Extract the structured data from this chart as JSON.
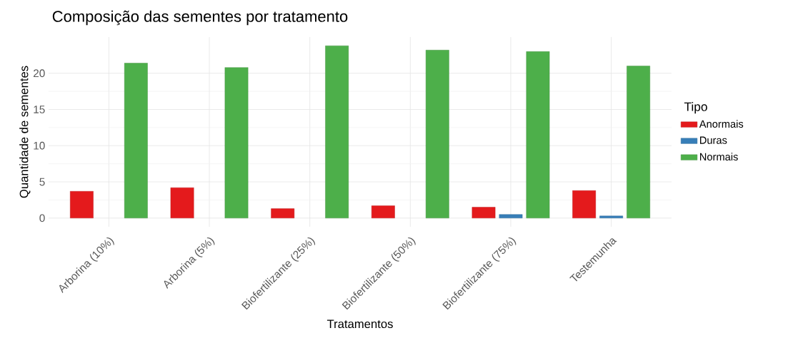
{
  "chart_data": {
    "type": "bar",
    "title": "Composição das sementes por tratamento",
    "xlabel": "Tratamentos",
    "ylabel": "Quantidade de sementes",
    "legend_title": "Tipo",
    "categories": [
      "Arborina (10%)",
      "Arborina (5%)",
      "Biofertilizante (25%)",
      "Biofertilizante (50%)",
      "Biofertilizante (75%)",
      "Testemunha"
    ],
    "series": [
      {
        "name": "Anormais",
        "color": "#e41a1c",
        "values": [
          3.7,
          4.2,
          1.3,
          1.7,
          1.5,
          3.8
        ]
      },
      {
        "name": "Duras",
        "color": "#377eb8",
        "values": [
          null,
          null,
          null,
          null,
          0.5,
          0.3
        ]
      },
      {
        "name": "Normais",
        "color": "#4daf4a",
        "values": [
          21.4,
          20.8,
          23.8,
          23.2,
          23.0,
          21.0
        ]
      }
    ],
    "ylim": [
      -1.2,
      25
    ],
    "yticks": [
      0,
      5,
      10,
      15,
      20
    ],
    "grid": true,
    "legend": "right"
  }
}
